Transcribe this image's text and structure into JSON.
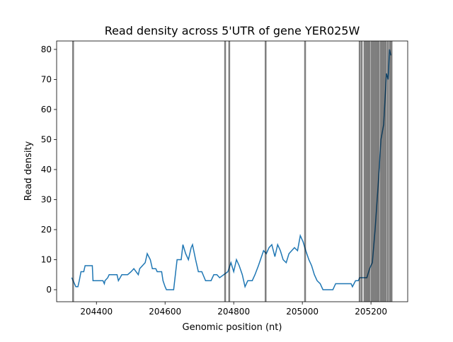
{
  "chart_data": {
    "type": "line",
    "title": "Read density across 5'UTR of gene YER025W",
    "x_label": "Genomic position (nt)",
    "y_label": "Read density",
    "xlim": [
      204284,
      205307
    ],
    "ylim": [
      -4,
      82.8
    ],
    "xticks": [
      204400,
      204600,
      204800,
      205000,
      205200
    ],
    "yticks": [
      0,
      10,
      20,
      30,
      40,
      50,
      60,
      70,
      80
    ],
    "vline_color": "#000000",
    "vlines": [
      204332,
      204775,
      204787,
      204893,
      205008,
      205167,
      205173,
      205181,
      205186,
      205191,
      205196,
      205202,
      205207,
      205212,
      205217,
      205222,
      205228,
      205233,
      205238,
      205243,
      205249,
      205255,
      205260
    ],
    "series": [
      {
        "color": "#1f77b4",
        "x": [
          204328,
          204332,
          204336,
          204340,
          204346,
          204350,
          204355,
          204363,
          204367,
          204388,
          204390,
          204408,
          204419,
          204423,
          204425,
          204433,
          204437,
          204460,
          204464,
          204474,
          204491,
          204501,
          204509,
          204522,
          204526,
          204542,
          204548,
          204557,
          204563,
          204573,
          204577,
          204590,
          204594,
          204600,
          204604,
          204625,
          204631,
          204635,
          204647,
          204652,
          204660,
          204668,
          204676,
          204680,
          204689,
          204697,
          204707,
          204718,
          204734,
          204742,
          204751,
          204759,
          204771,
          204783,
          204792,
          204800,
          204808,
          204816,
          204825,
          204833,
          204841,
          204854,
          204862,
          204872,
          204878,
          204887,
          204895,
          204903,
          204911,
          204920,
          204928,
          204936,
          204944,
          204953,
          204961,
          204969,
          204977,
          204986,
          204994,
          205002,
          205010,
          205019,
          205027,
          205035,
          205043,
          205052,
          205060,
          205089,
          205097,
          205142,
          205146,
          205155,
          205163,
          205167,
          205188,
          205196,
          205204,
          205212,
          205221,
          205229,
          205237,
          205245,
          205250,
          205254,
          205258
        ],
        "values": [
          4,
          3,
          2,
          1,
          1,
          3,
          6,
          6,
          8,
          8,
          3,
          3,
          3,
          2,
          3,
          4,
          5,
          5,
          3,
          5,
          5,
          6,
          7,
          5,
          7,
          9,
          12,
          10,
          7,
          7,
          6,
          6,
          3,
          1,
          0,
          0,
          6,
          10,
          10,
          15,
          12,
          10,
          14,
          15,
          10,
          6,
          6,
          3,
          3,
          5,
          5,
          4,
          5,
          6,
          9,
          6,
          10,
          8,
          5,
          1,
          3,
          3,
          5,
          8,
          10,
          13,
          12,
          14,
          15,
          11,
          15,
          13,
          10,
          9,
          12,
          13,
          14,
          13,
          18,
          16,
          13,
          10,
          8,
          5,
          3,
          2,
          0,
          0,
          2,
          2,
          1,
          3,
          3,
          4,
          4,
          7,
          9,
          20,
          35,
          50,
          55,
          72,
          70,
          80,
          78
        ]
      }
    ]
  }
}
